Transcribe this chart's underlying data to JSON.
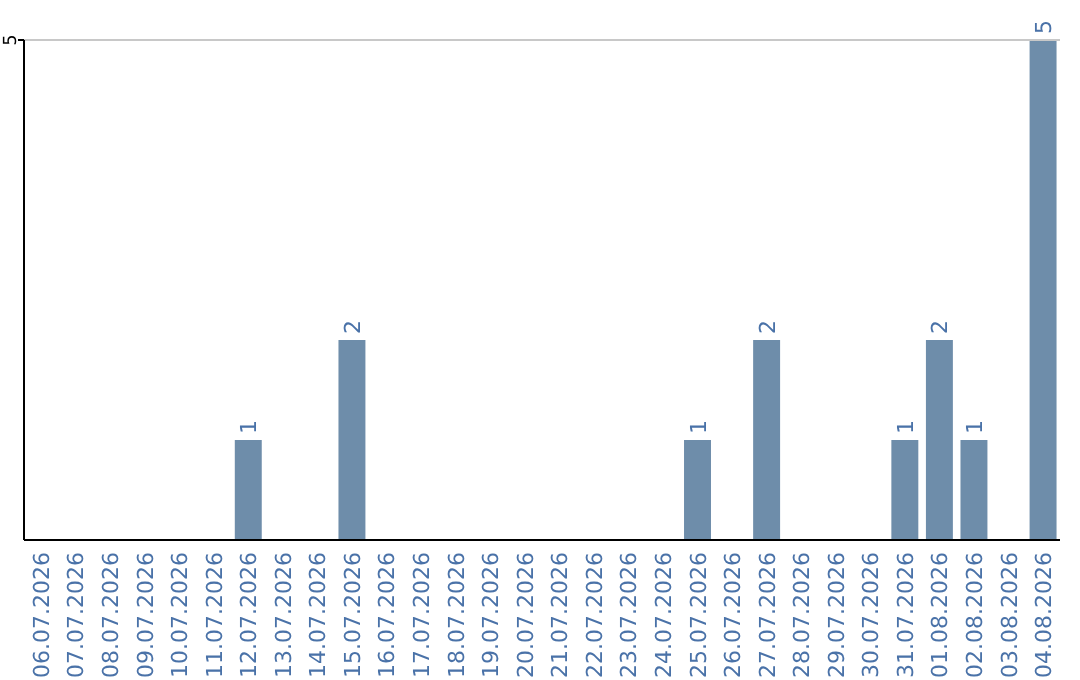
{
  "chart_data": {
    "type": "bar",
    "categories": [
      "06.07.2026",
      "07.07.2026",
      "08.07.2026",
      "09.07.2026",
      "10.07.2026",
      "11.07.2026",
      "12.07.2026",
      "13.07.2026",
      "14.07.2026",
      "15.07.2026",
      "16.07.2026",
      "17.07.2026",
      "18.07.2026",
      "19.07.2026",
      "20.07.2026",
      "21.07.2026",
      "22.07.2026",
      "23.07.2026",
      "24.07.2026",
      "25.07.2026",
      "26.07.2026",
      "27.07.2026",
      "28.07.2026",
      "29.07.2026",
      "30.07.2026",
      "31.07.2026",
      "01.08.2026",
      "02.08.2026",
      "03.08.2026",
      "04.08.2026"
    ],
    "values": [
      0,
      0,
      0,
      0,
      0,
      0,
      1,
      0,
      0,
      2,
      0,
      0,
      0,
      0,
      0,
      0,
      0,
      0,
      0,
      1,
      0,
      2,
      0,
      0,
      0,
      1,
      2,
      1,
      0,
      5
    ],
    "value_labels": [
      null,
      null,
      null,
      null,
      null,
      null,
      "1",
      null,
      null,
      "2",
      null,
      null,
      null,
      null,
      null,
      null,
      null,
      null,
      null,
      "1",
      null,
      "2",
      null,
      null,
      null,
      "1",
      "2",
      "1",
      null,
      "5"
    ],
    "color": "#6e8daa",
    "ylim": [
      0,
      5
    ],
    "yticks": [
      5
    ]
  }
}
